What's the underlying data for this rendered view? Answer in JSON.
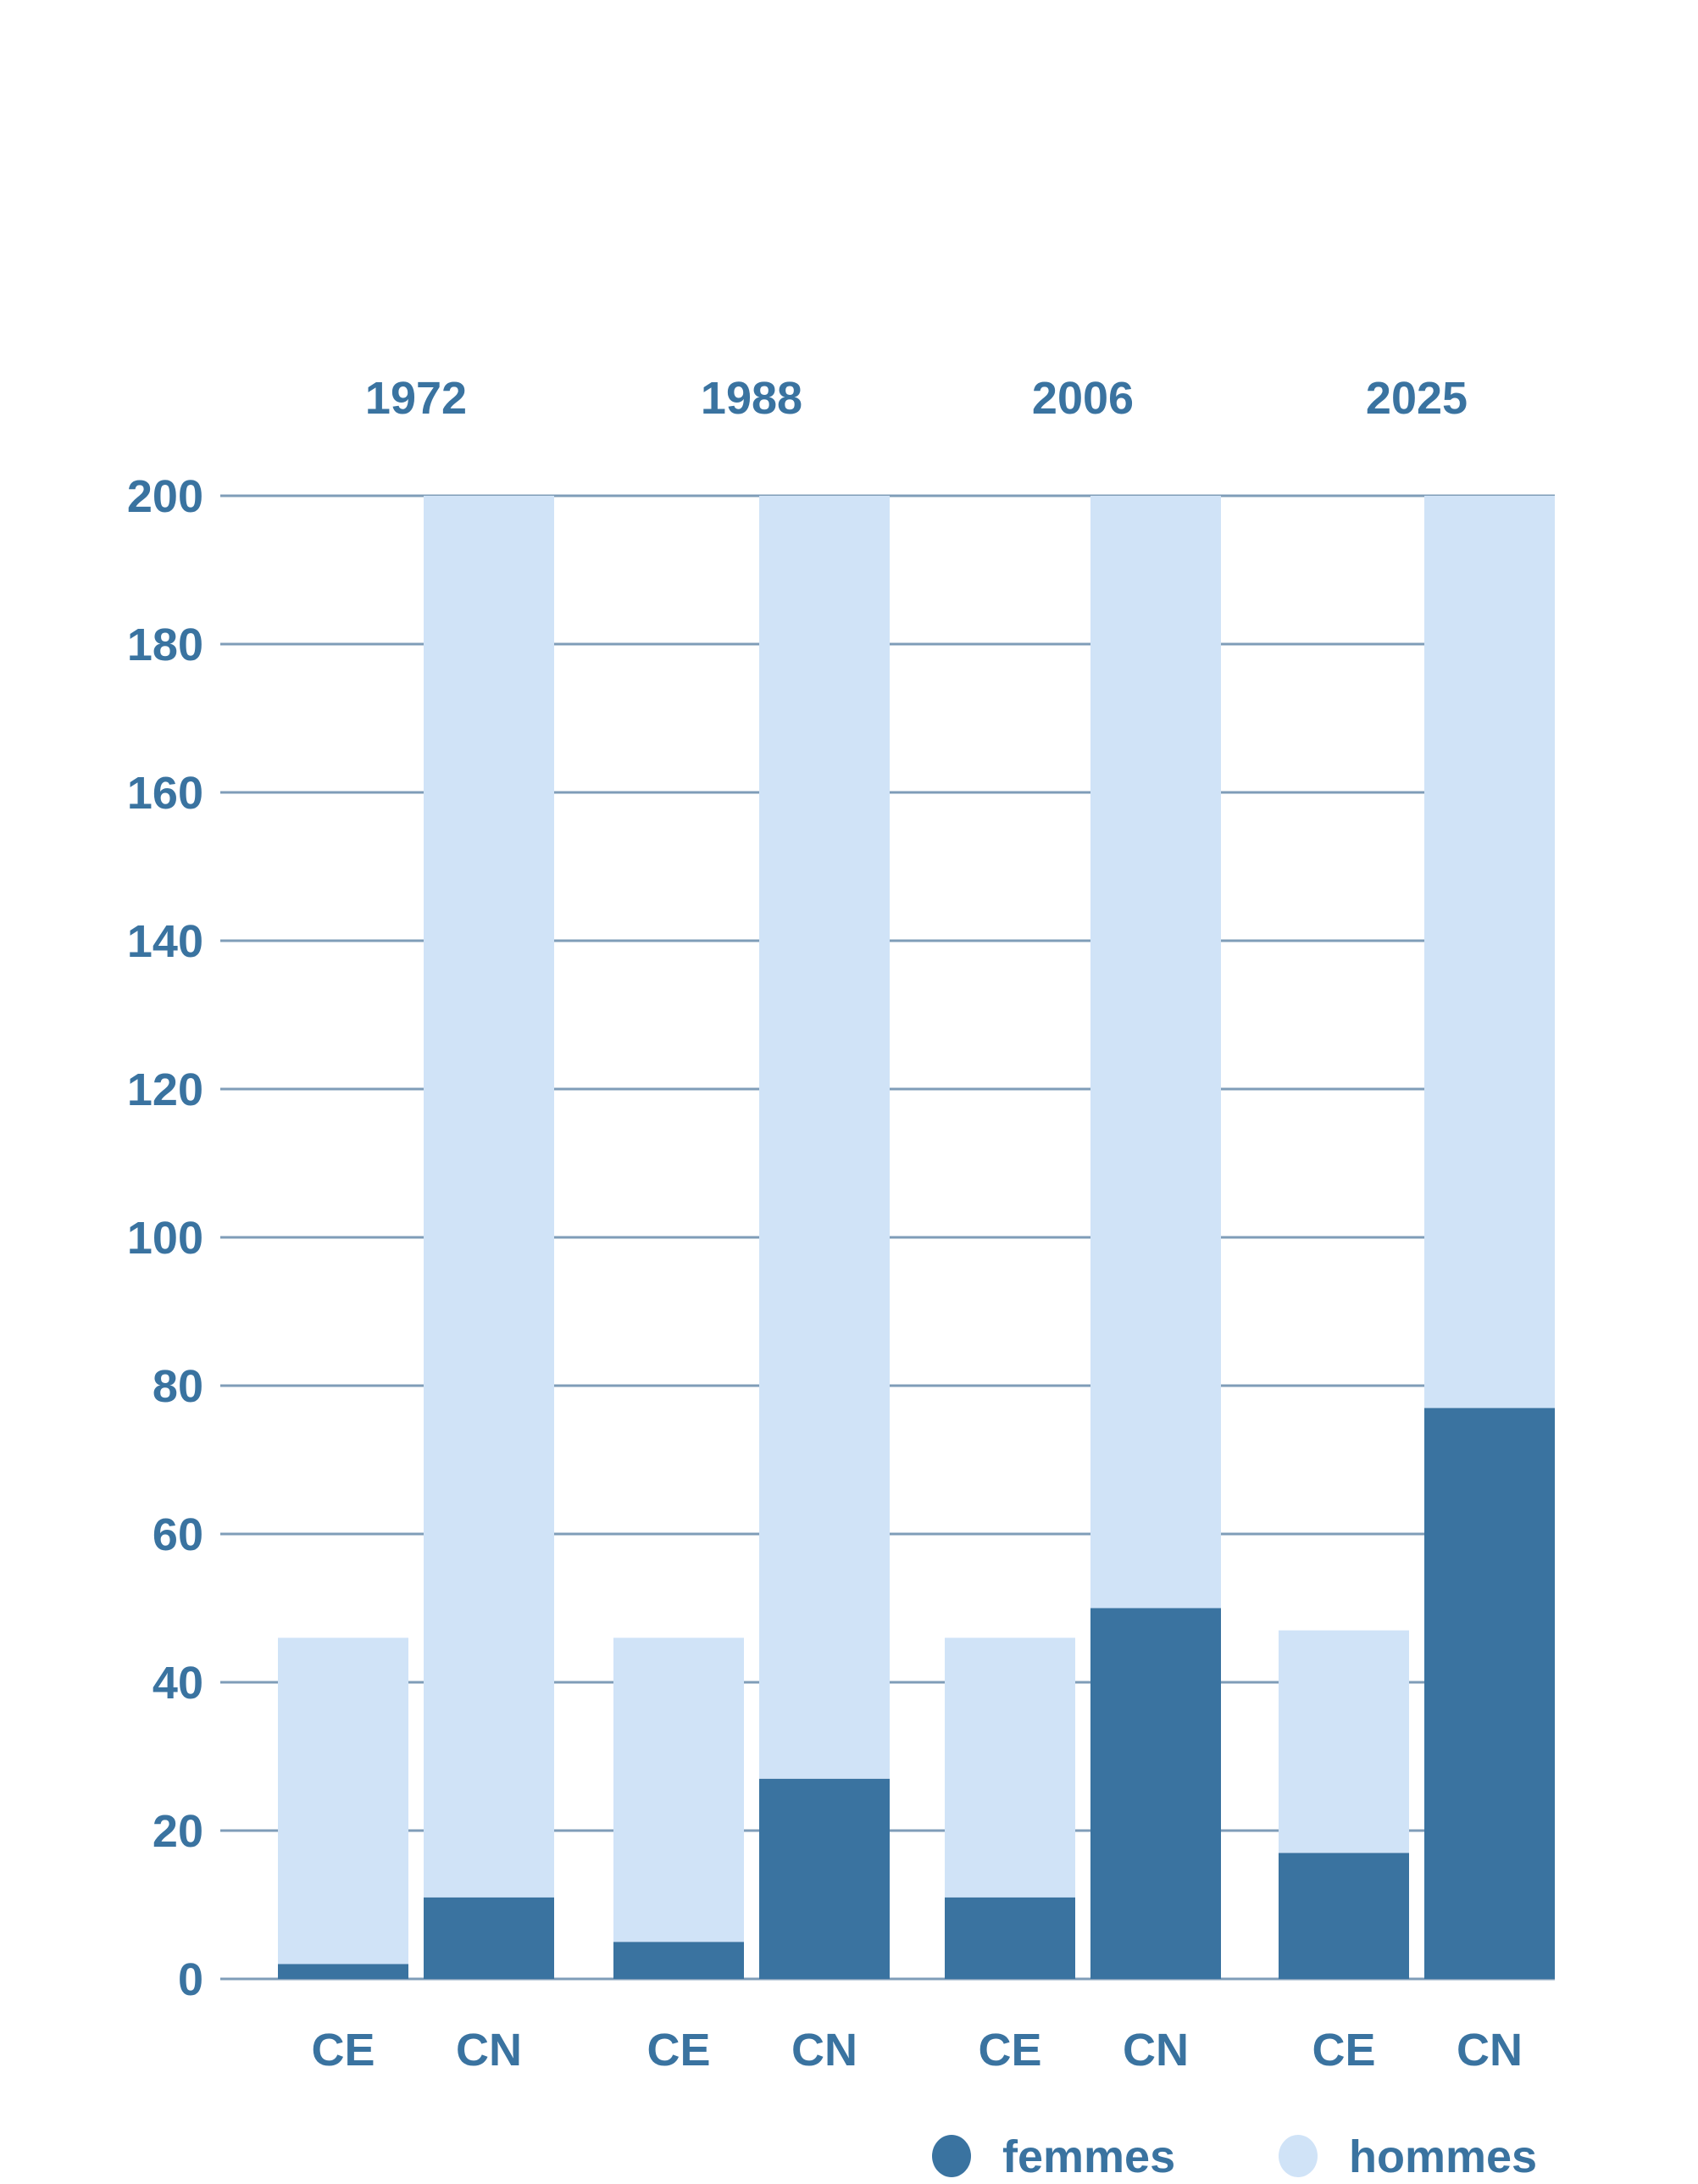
{
  "chart_data": {
    "type": "bar",
    "stacked": true,
    "title": "",
    "xlabel": "",
    "ylabel": "",
    "groups": [
      "1972",
      "1988",
      "2006",
      "2025"
    ],
    "categories": [
      "CE",
      "CN"
    ],
    "ylim": [
      0,
      200
    ],
    "yticks": [
      0,
      20,
      40,
      60,
      80,
      100,
      120,
      140,
      160,
      180,
      200
    ],
    "grid": true,
    "legend_position": "bottom-right",
    "series": [
      {
        "name": "femmes",
        "color": "#3a73a0",
        "values": {
          "1972": {
            "CE": 2,
            "CN": 11
          },
          "1988": {
            "CE": 5,
            "CN": 27
          },
          "2006": {
            "CE": 11,
            "CN": 50
          },
          "2025": {
            "CE": 17,
            "CN": 77
          }
        }
      },
      {
        "name": "hommes",
        "color": "#d0e3f7",
        "values": {
          "1972": {
            "CE": 44,
            "CN": 189
          },
          "1988": {
            "CE": 41,
            "CN": 173
          },
          "2006": {
            "CE": 35,
            "CN": 150
          },
          "2025": {
            "CE": 30,
            "CN": 123
          }
        }
      }
    ],
    "colors": {
      "text": "#3a73a0",
      "grid": "#7f9db8"
    }
  }
}
